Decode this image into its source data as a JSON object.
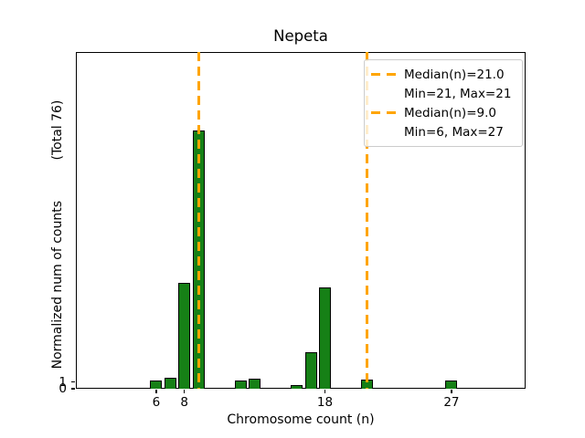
{
  "chart_data": {
    "type": "bar",
    "title": "Nepeta",
    "xlabel": "Chromosome count (n)",
    "ylabel": "Normalized num of counts          (Total 76)",
    "total_label": "Total 76",
    "x": [
      6,
      7,
      8,
      9,
      12,
      13,
      16,
      17,
      18,
      21,
      27
    ],
    "values": [
      1.2,
      1.6,
      15.7,
      38.4,
      1.2,
      1.5,
      0.6,
      5.4,
      15.0,
      1.3,
      1.2
    ],
    "bar_width": 0.85,
    "bar_color": "#168016",
    "bar_edge_color": "#000000",
    "line_color": "#FFA500",
    "xlim": [
      0.28,
      32.27
    ],
    "ylim": [
      0,
      50
    ],
    "xticks": [
      6,
      8,
      18,
      27
    ],
    "yticks": [
      1,
      0
    ],
    "grid": false,
    "legend_position": "upper right",
    "median_lines": [
      {
        "x": 21,
        "label": "Median(n)=21.0",
        "sublabel": "Min=21, Max=21"
      },
      {
        "x": 9,
        "label": "Median(n)=9.0",
        "sublabel": "Min=6, Max=27"
      }
    ],
    "legend_entries": [
      {
        "handle": true,
        "label": "Median(n)=21.0"
      },
      {
        "handle": false,
        "label": "Min=21, Max=21"
      },
      {
        "handle": true,
        "label": "Median(n)=9.0"
      },
      {
        "handle": false,
        "label": "Min=6, Max=27"
      }
    ]
  }
}
